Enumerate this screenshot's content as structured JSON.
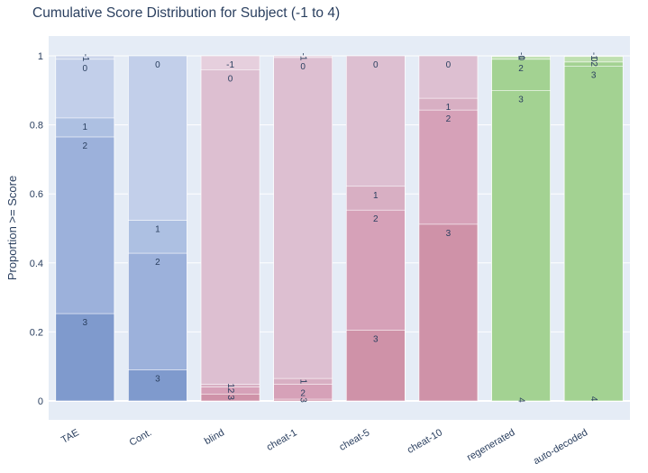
{
  "chart_data": {
    "type": "bar",
    "stacking": "cumulative-overlay",
    "title": "Cumulative Score Distribution for Subject (-1 to 4)",
    "xlabel": "",
    "ylabel": "Proportion >= Score",
    "ylim": [
      0,
      1
    ],
    "yticks": [
      0,
      0.2,
      0.4,
      0.6,
      0.8,
      1
    ],
    "ytick_labels": [
      "0",
      "0.2",
      "0.4",
      "0.6",
      "0.8",
      "1"
    ],
    "categories": [
      "TAE",
      "Cont.",
      "blind",
      "cheat-1",
      "cheat-5",
      "cheat-10",
      "regenerated",
      "auto-decoded"
    ],
    "families": [
      "blue",
      "blue",
      "pink",
      "pink",
      "pink",
      "pink",
      "green",
      "green"
    ],
    "colors": {
      "blue": [
        "#ccd6ec",
        "#c2cfea",
        "#adc0e2",
        "#9cb1db",
        "#7f9acd"
      ],
      "pink": [
        "#e6cfdd",
        "#ddbfd1",
        "#d8afc3",
        "#d6a1b8",
        "#cf92a8"
      ],
      "green": [
        "#d1e6c7",
        "#bfe0b0",
        "#b0dba0",
        "#a3d292",
        "#a3d292"
      ]
    },
    "levels": [
      "-1",
      "0",
      "1",
      "2",
      "3",
      "4"
    ],
    "bars": [
      {
        "category": "TAE",
        "cum": [
          1.0,
          0.99,
          0.82,
          0.765,
          0.253,
          0.0
        ]
      },
      {
        "category": "Cont.",
        "cum": [
          1.0,
          1.0,
          0.523,
          0.428,
          0.09,
          0.0
        ]
      },
      {
        "category": "blind",
        "cum": [
          1.0,
          0.96,
          0.048,
          0.04,
          0.02,
          0.0
        ]
      },
      {
        "category": "cheat-1",
        "cum": [
          1.0,
          0.995,
          0.065,
          0.048,
          0.005,
          0.0
        ]
      },
      {
        "category": "cheat-5",
        "cum": [
          1.0,
          1.0,
          0.622,
          0.553,
          0.205,
          0.0
        ]
      },
      {
        "category": "cheat-10",
        "cum": [
          1.0,
          1.0,
          0.877,
          0.843,
          0.512,
          0.0
        ]
      },
      {
        "category": "regenerated",
        "cum": [
          1.0,
          0.998,
          0.99,
          0.99,
          0.9,
          0.005
        ]
      },
      {
        "category": "auto-decoded",
        "cum": [
          1.0,
          0.998,
          0.982,
          0.982,
          0.97,
          0.012
        ]
      }
    ]
  }
}
